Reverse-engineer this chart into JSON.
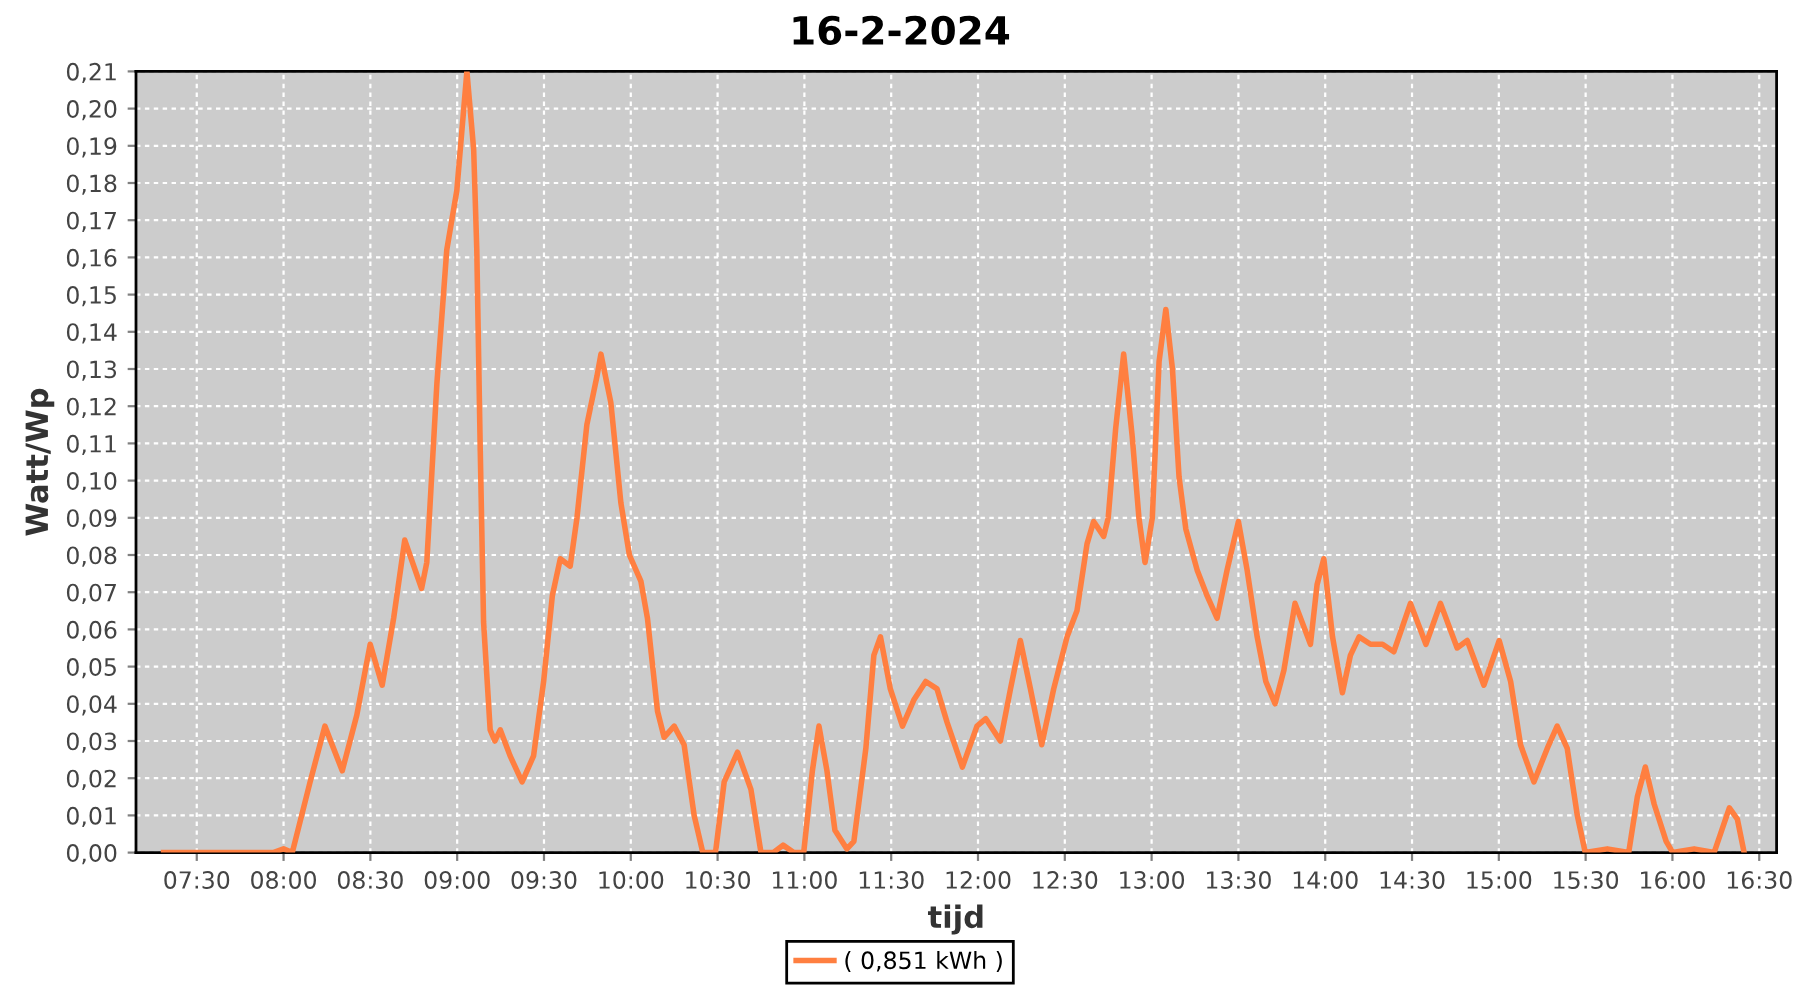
{
  "chart_data": {
    "type": "line",
    "title": "16-2-2024",
    "xlabel": "tijd",
    "ylabel": "Watt/Wp",
    "xlim": [
      7.15,
      16.6
    ],
    "xticks": [
      {
        "value": 7.5,
        "label": "07:30"
      },
      {
        "value": 8,
        "label": "08:00"
      },
      {
        "value": 8.5,
        "label": "08:30"
      },
      {
        "value": 9,
        "label": "09:00"
      },
      {
        "value": 9.5,
        "label": "09:30"
      },
      {
        "value": 10,
        "label": "10:00"
      },
      {
        "value": 10.5,
        "label": "10:30"
      },
      {
        "value": 11,
        "label": "11:00"
      },
      {
        "value": 11.5,
        "label": "11:30"
      },
      {
        "value": 12,
        "label": "12:00"
      },
      {
        "value": 12.5,
        "label": "12:30"
      },
      {
        "value": 13,
        "label": "13:00"
      },
      {
        "value": 13.5,
        "label": "13:30"
      },
      {
        "value": 14,
        "label": "14:00"
      },
      {
        "value": 14.5,
        "label": "14:30"
      },
      {
        "value": 15,
        "label": "15:00"
      },
      {
        "value": 15.5,
        "label": "15:30"
      },
      {
        "value": 16,
        "label": "16:00"
      },
      {
        "value": 16.5,
        "label": "16:30"
      }
    ],
    "ylim": [
      0,
      0.21
    ],
    "yticks": [
      {
        "value": 0,
        "label": "0,00"
      },
      {
        "value": 0.01,
        "label": "0,01"
      },
      {
        "value": 0.02,
        "label": "0,02"
      },
      {
        "value": 0.03,
        "label": "0,03"
      },
      {
        "value": 0.04,
        "label": "0,04"
      },
      {
        "value": 0.05,
        "label": "0,05"
      },
      {
        "value": 0.06,
        "label": "0,06"
      },
      {
        "value": 0.07,
        "label": "0,07"
      },
      {
        "value": 0.08,
        "label": "0,08"
      },
      {
        "value": 0.09,
        "label": "0,09"
      },
      {
        "value": 0.1,
        "label": "0,10"
      },
      {
        "value": 0.11,
        "label": "0,11"
      },
      {
        "value": 0.12,
        "label": "0,12"
      },
      {
        "value": 0.13,
        "label": "0,13"
      },
      {
        "value": 0.14,
        "label": "0,14"
      },
      {
        "value": 0.15,
        "label": "0,15"
      },
      {
        "value": 0.16,
        "label": "0,16"
      },
      {
        "value": 0.17,
        "label": "0,17"
      },
      {
        "value": 0.18,
        "label": "0,18"
      },
      {
        "value": 0.19,
        "label": "0,19"
      },
      {
        "value": 0.2,
        "label": "0,20"
      },
      {
        "value": 0.21,
        "label": "0,21"
      }
    ],
    "grid": true,
    "legend": "bottom",
    "line_style": "solid",
    "series": [
      {
        "name": "( 0,851 kWh )",
        "color": "#ff7f40",
        "x": [
          7.309,
          7.94,
          8.0,
          8.05,
          8.153,
          8.238,
          8.338,
          8.422,
          8.499,
          8.568,
          8.634,
          8.698,
          8.795,
          8.825,
          8.883,
          8.94,
          8.998,
          9.056,
          9.095,
          9.113,
          9.133,
          9.152,
          9.19,
          9.217,
          9.248,
          9.305,
          9.374,
          9.44,
          9.498,
          9.548,
          9.594,
          9.651,
          9.69,
          9.747,
          9.805,
          9.828,
          9.885,
          9.943,
          9.992,
          10.058,
          10.096,
          10.154,
          10.192,
          10.25,
          10.307,
          10.365,
          10.415,
          10.488,
          10.538,
          10.615,
          10.692,
          10.75,
          10.82,
          10.877,
          10.939,
          10.996,
          11.046,
          11.084,
          11.13,
          11.176,
          11.245,
          11.285,
          11.354,
          11.4,
          11.438,
          11.495,
          11.565,
          11.63,
          11.699,
          11.764,
          11.822,
          11.91,
          11.994,
          12.045,
          12.129,
          12.187,
          12.244,
          12.302,
          12.367,
          12.436,
          12.513,
          12.57,
          12.628,
          12.666,
          12.724,
          12.75,
          12.793,
          12.839,
          12.888,
          12.927,
          12.962,
          13.004,
          13.043,
          13.082,
          13.12,
          13.158,
          13.197,
          13.262,
          13.32,
          13.377,
          13.435,
          13.5,
          13.55,
          13.608,
          13.658,
          13.711,
          13.762,
          13.826,
          13.915,
          13.953,
          13.992,
          14.042,
          14.099,
          14.145,
          14.195,
          14.261,
          14.33,
          14.395,
          14.491,
          14.58,
          14.664,
          14.76,
          14.818,
          14.914,
          15.002,
          15.068,
          15.125,
          15.202,
          15.279,
          15.336,
          15.394,
          15.452,
          15.498,
          15.625,
          15.748,
          15.798,
          15.844,
          15.895,
          15.964,
          16.002,
          16.125,
          16.24,
          16.328,
          16.374,
          16.413
        ],
        "values": [
          0,
          0,
          0.001,
          0,
          0.019,
          0.034,
          0.022,
          0.037,
          0.056,
          0.045,
          0.063,
          0.084,
          0.071,
          0.078,
          0.126,
          0.162,
          0.178,
          0.21,
          0.189,
          0.162,
          0.108,
          0.062,
          0.033,
          0.03,
          0.033,
          0.026,
          0.019,
          0.026,
          0.046,
          0.069,
          0.079,
          0.077,
          0.09,
          0.115,
          0.128,
          0.134,
          0.121,
          0.094,
          0.08,
          0.073,
          0.063,
          0.038,
          0.031,
          0.034,
          0.029,
          0.01,
          0,
          0,
          0.019,
          0.027,
          0.017,
          0,
          0,
          0.002,
          0,
          0,
          0.022,
          0.034,
          0.022,
          0.006,
          0.001,
          0.003,
          0.028,
          0.053,
          0.058,
          0.044,
          0.034,
          0.041,
          0.046,
          0.044,
          0.035,
          0.023,
          0.034,
          0.036,
          0.03,
          0.044,
          0.057,
          0.044,
          0.029,
          0.044,
          0.058,
          0.065,
          0.083,
          0.089,
          0.085,
          0.09,
          0.114,
          0.134,
          0.112,
          0.09,
          0.078,
          0.09,
          0.132,
          0.146,
          0.13,
          0.101,
          0.087,
          0.076,
          0.069,
          0.063,
          0.076,
          0.089,
          0.076,
          0.058,
          0.046,
          0.04,
          0.049,
          0.067,
          0.056,
          0.072,
          0.079,
          0.058,
          0.043,
          0.053,
          0.058,
          0.056,
          0.056,
          0.054,
          0.067,
          0.056,
          0.067,
          0.055,
          0.057,
          0.045,
          0.057,
          0.046,
          0.029,
          0.019,
          0.028,
          0.034,
          0.028,
          0.01,
          0,
          0.001,
          0,
          0.015,
          0.023,
          0.013,
          0.003,
          0,
          0.001,
          0,
          0.012,
          0.009,
          0
        ]
      }
    ]
  }
}
